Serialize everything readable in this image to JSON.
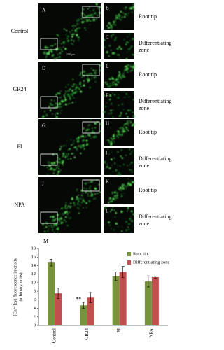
{
  "figure": {
    "scale_bar": "100 µm",
    "rows": [
      {
        "label": "Control",
        "panels": [
          "A",
          "B",
          "C"
        ],
        "top_label": "Root tip",
        "bottom_label": "Differentiating zone"
      },
      {
        "label": "GR24",
        "panels": [
          "D",
          "E",
          "F"
        ],
        "top_label": "Root tip",
        "bottom_label": "Differentiating zone"
      },
      {
        "label": "FI",
        "panels": [
          "G",
          "H",
          "I"
        ],
        "top_label": "Root tip",
        "bottom_label": "Differentiating zone"
      },
      {
        "label": "NPA",
        "panels": [
          "J",
          "K",
          "L"
        ],
        "top_label": "Root tip",
        "bottom_label": "Differentiating zone"
      }
    ]
  },
  "chart_data": {
    "type": "bar",
    "panel_label": "M",
    "ylabel": [
      "[Ca²⁺]cyt fluorescence intensity",
      "(arbitrary units)"
    ],
    "categories": [
      "Control",
      "GR24",
      "FI",
      "NPA"
    ],
    "series": [
      {
        "name": "Root tip",
        "color": "#77933c",
        "values": [
          14.7,
          4.7,
          11.5,
          10.3
        ],
        "errors": [
          0.8,
          0.7,
          1.0,
          1.3
        ]
      },
      {
        "name": "Differentiating zone",
        "color": "#c0504d",
        "values": [
          7.5,
          6.5,
          12.5,
          11.3
        ],
        "errors": [
          1.2,
          1.2,
          1.3,
          0.2
        ]
      }
    ],
    "ylim": [
      0,
      18
    ],
    "yticks": [
      0,
      2,
      4,
      6,
      8,
      10,
      12,
      14,
      16,
      18
    ],
    "annotations": [
      {
        "text": "**",
        "category": "GR24"
      }
    ],
    "legend": "top-right"
  }
}
